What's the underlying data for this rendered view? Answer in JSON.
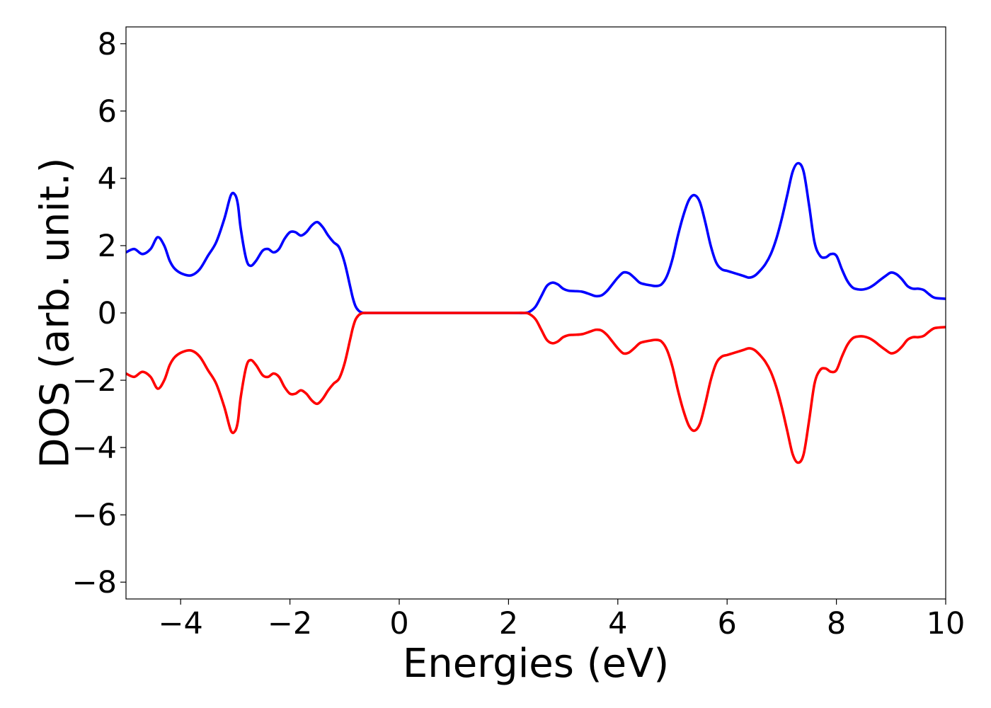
{
  "chart_data": {
    "type": "line",
    "title": "",
    "xlabel": "Energies (eV)",
    "ylabel": "DOS (arb. unit.)",
    "xlim": [
      -5,
      10
    ],
    "ylim": [
      -8.5,
      8.5
    ],
    "x_ticks": [
      -4,
      -2,
      0,
      2,
      4,
      6,
      8,
      10
    ],
    "x_tick_labels": [
      "−4",
      "−2",
      "0",
      "2",
      "4",
      "6",
      "8",
      "10"
    ],
    "y_ticks": [
      8,
      6,
      4,
      2,
      0,
      -2,
      -4,
      -6,
      -8
    ],
    "y_tick_labels": [
      "8",
      "6",
      "4",
      "2",
      "0",
      "−2",
      "−4",
      "−6",
      "−8"
    ],
    "grid": false,
    "legend": "none",
    "series": [
      {
        "color": "#0000ff",
        "x": [
          -5.0,
          -4.85,
          -4.7,
          -4.55,
          -4.42,
          -4.3,
          -4.2,
          -4.1,
          -3.95,
          -3.8,
          -3.65,
          -3.5,
          -3.35,
          -3.2,
          -3.08,
          -3.0,
          -2.95,
          -2.9,
          -2.8,
          -2.72,
          -2.62,
          -2.5,
          -2.4,
          -2.3,
          -2.2,
          -2.1,
          -2.0,
          -1.9,
          -1.8,
          -1.7,
          -1.6,
          -1.5,
          -1.4,
          -1.3,
          -1.2,
          -1.1,
          -1.0,
          -0.9,
          -0.85,
          -0.8,
          -0.75,
          -0.7,
          -0.65,
          -0.6,
          -0.55,
          -0.5,
          0.0,
          1.0,
          2.0,
          2.3,
          2.4,
          2.5,
          2.6,
          2.7,
          2.8,
          2.9,
          3.0,
          3.1,
          3.2,
          3.35,
          3.5,
          3.6,
          3.7,
          3.8,
          3.9,
          4.0,
          4.1,
          4.2,
          4.3,
          4.4,
          4.5,
          4.6,
          4.7,
          4.8,
          4.9,
          5.0,
          5.1,
          5.2,
          5.3,
          5.4,
          5.5,
          5.6,
          5.7,
          5.8,
          5.9,
          6.0,
          6.1,
          6.2,
          6.3,
          6.4,
          6.5,
          6.6,
          6.7,
          6.8,
          6.9,
          7.0,
          7.1,
          7.2,
          7.3,
          7.4,
          7.5,
          7.6,
          7.7,
          7.8,
          7.9,
          8.0,
          8.1,
          8.2,
          8.3,
          8.4,
          8.5,
          8.6,
          8.7,
          8.8,
          8.9,
          9.0,
          9.1,
          9.2,
          9.3,
          9.4,
          9.5,
          9.6,
          9.7,
          9.8,
          10.0
        ],
        "y": [
          1.8,
          1.9,
          1.75,
          1.9,
          2.25,
          2.0,
          1.55,
          1.3,
          1.15,
          1.12,
          1.3,
          1.7,
          2.1,
          2.8,
          3.5,
          3.5,
          3.2,
          2.5,
          1.6,
          1.4,
          1.55,
          1.85,
          1.9,
          1.8,
          1.9,
          2.2,
          2.4,
          2.4,
          2.3,
          2.4,
          2.6,
          2.7,
          2.55,
          2.3,
          2.1,
          1.95,
          1.5,
          0.8,
          0.45,
          0.2,
          0.08,
          0.02,
          0.0,
          0.0,
          0.0,
          0.0,
          0.0,
          0.0,
          0.0,
          0.0,
          0.05,
          0.2,
          0.5,
          0.8,
          0.9,
          0.85,
          0.72,
          0.66,
          0.65,
          0.63,
          0.55,
          0.5,
          0.52,
          0.65,
          0.85,
          1.05,
          1.2,
          1.18,
          1.05,
          0.9,
          0.85,
          0.82,
          0.8,
          0.85,
          1.1,
          1.6,
          2.3,
          2.9,
          3.35,
          3.5,
          3.3,
          2.7,
          2.0,
          1.5,
          1.3,
          1.25,
          1.2,
          1.15,
          1.1,
          1.05,
          1.1,
          1.25,
          1.45,
          1.75,
          2.2,
          2.8,
          3.5,
          4.2,
          4.45,
          4.2,
          3.2,
          2.1,
          1.7,
          1.65,
          1.75,
          1.7,
          1.3,
          0.95,
          0.75,
          0.7,
          0.7,
          0.75,
          0.85,
          0.98,
          1.1,
          1.2,
          1.15,
          1.0,
          0.8,
          0.72,
          0.72,
          0.68,
          0.55,
          0.45,
          0.42
        ],
        "mirror": false
      },
      {
        "color": "#ff0000",
        "mirror_of_series": 0,
        "note_visual": "red curve is the negative of the blue curve"
      }
    ]
  }
}
